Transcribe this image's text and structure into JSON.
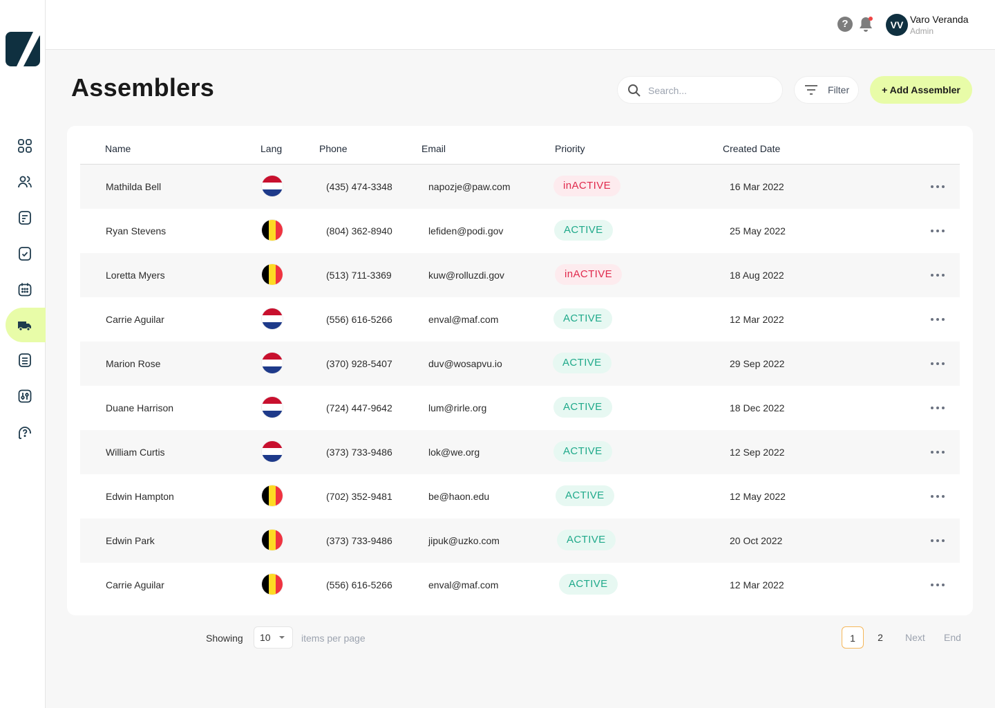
{
  "user": {
    "initials": "VV",
    "name": "Varo Veranda",
    "role": "Admin"
  },
  "header": {
    "title": "Assemblers",
    "add_label": "+ Add Assembler",
    "filter_label": "Filter"
  },
  "search": {
    "placeholder": "Search..."
  },
  "sidebar": {
    "items": [
      {
        "icon": "dashboard-grid-icon",
        "active": false
      },
      {
        "icon": "users-icon",
        "active": false
      },
      {
        "icon": "document-icon",
        "active": false
      },
      {
        "icon": "checklist-icon",
        "active": false
      },
      {
        "icon": "calendar-icon",
        "active": false
      },
      {
        "icon": "truck-icon",
        "active": true
      },
      {
        "icon": "list-icon",
        "active": false
      },
      {
        "icon": "settings-sliders-icon",
        "active": false
      },
      {
        "icon": "support-icon",
        "active": false
      }
    ]
  },
  "table": {
    "columns": {
      "name": "Name",
      "lang": "Lang",
      "phone": "Phone",
      "email": "Email",
      "priority": "Priority",
      "created": "Created Date"
    },
    "rows": [
      {
        "name": "Mathilda Bell",
        "flag": "nl",
        "phone": "(435) 474-3348",
        "email": "napozje@paw.com",
        "priority": "inACTIVE",
        "status": "inactive",
        "created": "16 Mar 2022"
      },
      {
        "name": "Ryan Stevens",
        "flag": "be",
        "phone": "(804) 362-8940",
        "email": "lefiden@podi.gov",
        "priority": "ACTIVE",
        "status": "active",
        "created": "25 May 2022"
      },
      {
        "name": "Loretta Myers",
        "flag": "be",
        "phone": "(513) 711-3369",
        "email": "kuw@rolluzdi.gov",
        "priority": "inACTIVE",
        "status": "inactive",
        "created": "18 Aug 2022"
      },
      {
        "name": "Carrie Aguilar",
        "flag": "nl",
        "phone": "(556) 616-5266",
        "email": "enval@maf.com",
        "priority": "ACTIVE",
        "status": "active",
        "created": "12 Mar 2022"
      },
      {
        "name": "Marion Rose",
        "flag": "nl",
        "phone": "(370) 928-5407",
        "email": "duv@wosapvu.io",
        "priority": "ACTIVE",
        "status": "active",
        "created": "29 Sep 2022"
      },
      {
        "name": "Duane Harrison",
        "flag": "nl",
        "phone": "(724) 447-9642",
        "email": "lum@rirle.org",
        "priority": "ACTIVE",
        "status": "active",
        "created": "18 Dec 2022"
      },
      {
        "name": "William Curtis",
        "flag": "nl",
        "phone": "(373) 733-9486",
        "email": "lok@we.org",
        "priority": "ACTIVE",
        "status": "active",
        "created": "12 Sep 2022"
      },
      {
        "name": "Edwin Hampton",
        "flag": "be",
        "phone": "(702) 352-9481",
        "email": "be@haon.edu",
        "priority": "ACTIVE",
        "status": "active",
        "created": "12 May 2022"
      },
      {
        "name": "Edwin Park",
        "flag": "be",
        "phone": "(373) 733-9486",
        "email": "jipuk@uzko.com",
        "priority": "ACTIVE",
        "status": "active",
        "created": "20 Oct 2022"
      },
      {
        "name": "Carrie Aguilar",
        "flag": "be",
        "phone": "(556) 616-5266",
        "email": "enval@maf.com",
        "priority": "ACTIVE",
        "status": "active",
        "created": "12 Mar 2022"
      }
    ]
  },
  "pagination": {
    "showing_label": "Showing",
    "per_page_value": "10",
    "items_label": "items per page",
    "pages": [
      "1",
      "2"
    ],
    "current_page": "1",
    "next_label": "Next",
    "end_label": "End"
  },
  "colors": {
    "accent": "#e8fca8",
    "active_bg": "#e7f8f2",
    "active_text": "#1fa98a",
    "inactive_bg": "#fdebee",
    "inactive_text": "#e0294c",
    "brand_dark": "#0f3040"
  }
}
